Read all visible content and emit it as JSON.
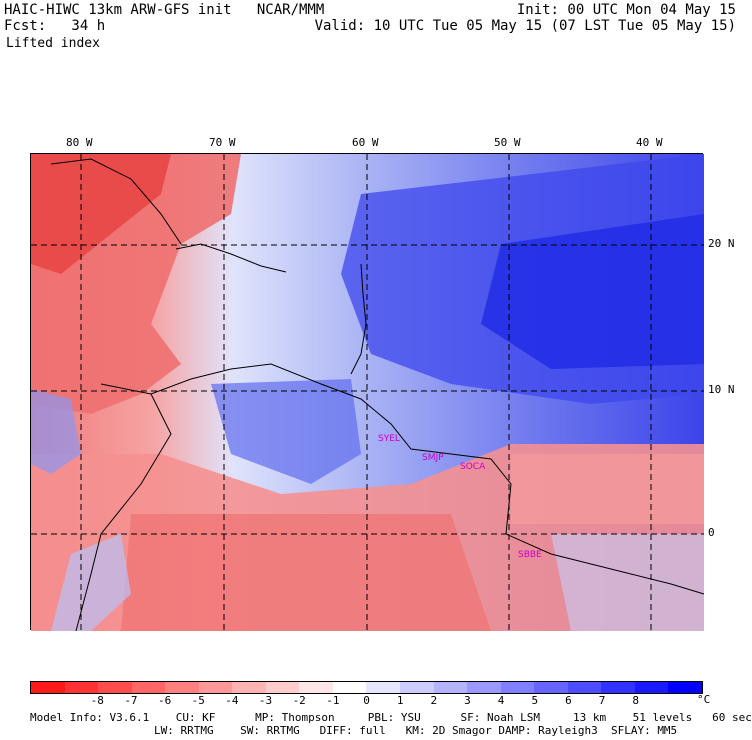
{
  "header": {
    "line1_left": "HAIC-HIWC 13km ARW-GFS init   NCAR/MMM",
    "line1_right": "Init: 00 UTC Mon 04 May 15",
    "line2_left": "Fcst:   34 h",
    "line2_right": "Valid: 10 UTC Tue 05 May 15 (07 LST Tue 05 May 15)",
    "field": "Lifted index"
  },
  "map": {
    "lon_labels": [
      "80 W",
      "70 W",
      "60 W",
      "50 W",
      "40 W"
    ],
    "lat_labels": [
      "20 N",
      "10 N",
      "0"
    ],
    "stations": [
      {
        "name": "SYEL"
      },
      {
        "name": "SMJP"
      },
      {
        "name": "SOCA"
      },
      {
        "name": "SBBE"
      }
    ]
  },
  "colorbar": {
    "colors": [
      "#ff1a1a",
      "#ff3333",
      "#ff4d4d",
      "#ff6666",
      "#ff8080",
      "#ff9999",
      "#ffb3b3",
      "#ffcccc",
      "#ffe6e6",
      "#ffffff",
      "#e6e6ff",
      "#ccccff",
      "#b3b3ff",
      "#9999ff",
      "#8080ff",
      "#6666ff",
      "#4d4dff",
      "#3333ff",
      "#1a1aff",
      "#0000ff"
    ],
    "ticks": [
      "-8",
      "-7",
      "-6",
      "-5",
      "-4",
      "-3",
      "-2",
      "-1",
      "0",
      "1",
      "2",
      "3",
      "4",
      "5",
      "6",
      "7",
      "8"
    ],
    "unit": "°C"
  },
  "footer": {
    "line1": "Model Info: V3.6.1    CU: KF      MP: Thompson     PBL: YSU      SF: Noah LSM     13 km    51 levels   60 sec",
    "line2": "LW: RRTMG    SW: RRTMG   DIFF: full   KM: 2D Smagor DAMP: Rayleigh3  SFLAY: MM5"
  }
}
